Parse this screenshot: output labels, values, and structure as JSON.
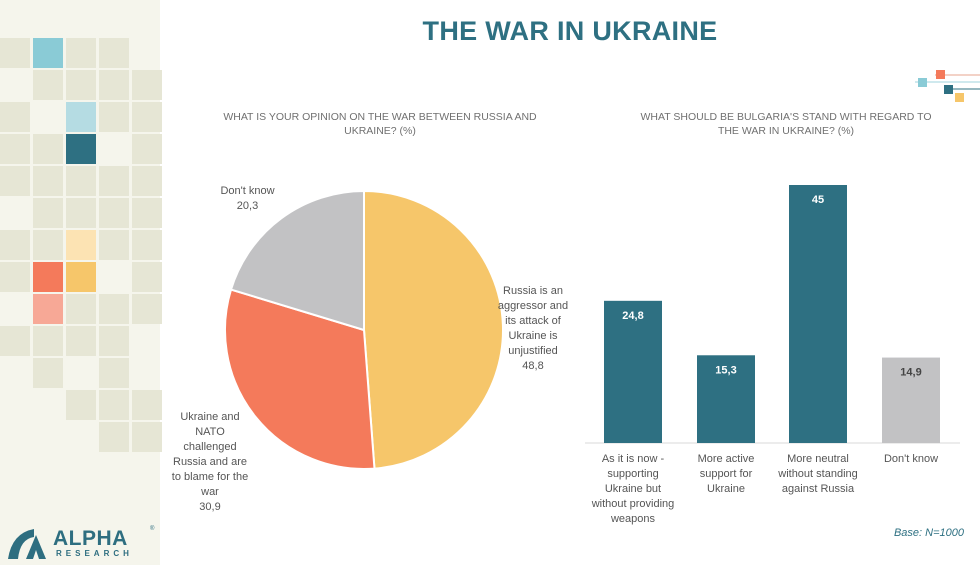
{
  "slide": {
    "title": "THE WAR IN UKRAINE",
    "base_note": "Base: N=1000",
    "logo_text": "ALPHA",
    "logo_sub": "RESEARCH",
    "logo_reg": "®"
  },
  "colors": {
    "accent": "#2e7082",
    "teal_bar": "#2e7082",
    "gray": "#c2c2c4",
    "orange": "#f47a5b",
    "yellow": "#f6c66a"
  },
  "chart_data": [
    {
      "type": "pie",
      "title": "WHAT IS YOUR OPINION ON THE WAR BETWEEN RUSSIA AND UKRAINE? (%)",
      "slices": [
        {
          "label": "Russia is an aggressor and its attack of Ukraine is unjustified",
          "value": 48.8,
          "value_text": "48,8",
          "color": "#f6c66a"
        },
        {
          "label": "Ukraine and NATO challenged Russia and are to blame for the war",
          "value": 30.9,
          "value_text": "30,9",
          "color": "#f47a5b"
        },
        {
          "label": "Don't know",
          "value": 20.3,
          "value_text": "20,3",
          "color": "#c2c2c4"
        }
      ]
    },
    {
      "type": "bar",
      "title": "WHAT SHOULD BE BULGARIA'S STAND WITH REGARD TO THE WAR IN UKRAINE? (%)",
      "categories": [
        "As it is now - supporting Ukraine but without providing weapons",
        "More active support for Ukraine",
        "More neutral without standing against Russia",
        "Don't know"
      ],
      "values": [
        24.8,
        15.3,
        45,
        14.9
      ],
      "value_labels": [
        "24,8",
        "15,3",
        "45",
        "14,9"
      ],
      "colors": [
        "#2e7082",
        "#2e7082",
        "#2e7082",
        "#c2c2c4"
      ],
      "ylim": [
        0,
        45
      ]
    }
  ]
}
